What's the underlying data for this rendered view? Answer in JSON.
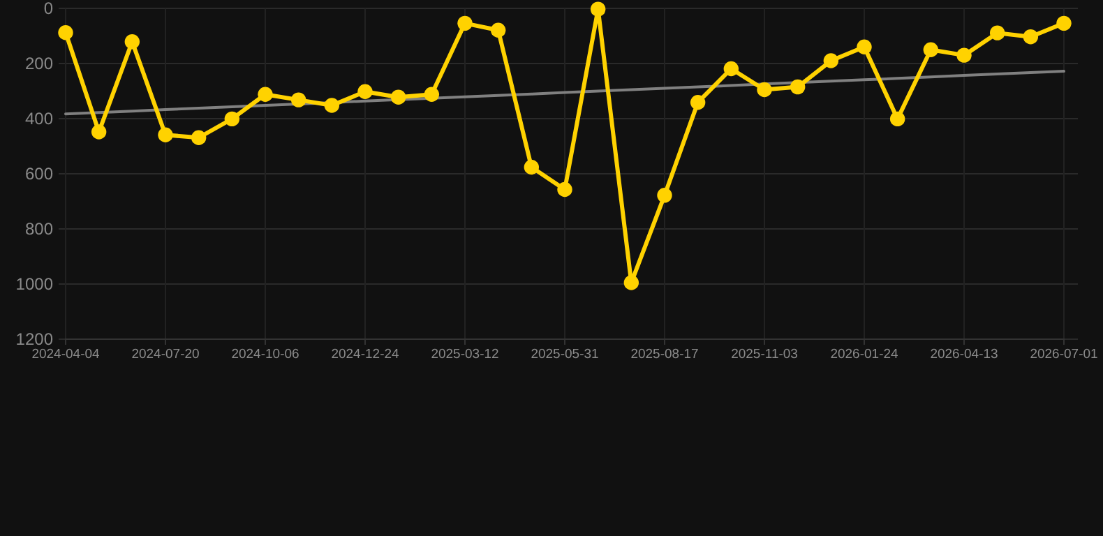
{
  "chart_data": {
    "type": "line",
    "categories": [
      "2024-04-04",
      null,
      null,
      "2024-07-20",
      null,
      null,
      "2024-10-06",
      null,
      null,
      "2024-12-24",
      null,
      null,
      "2025-03-12",
      null,
      null,
      "2025-05-31",
      null,
      null,
      "2025-08-17",
      null,
      null,
      "2025-11-03",
      null,
      null,
      "2026-01-24",
      null,
      null,
      "2026-04-13",
      null,
      null,
      "2026-07-01"
    ],
    "series": [
      {
        "color": "#ffd200",
        "marker": "circle",
        "values": [
          88,
          448,
          121,
          459,
          469,
          401,
          312,
          332,
          352,
          302,
          322,
          312,
          54,
          79,
          576,
          657,
          3,
          995,
          678,
          341,
          219,
          295,
          285,
          190,
          140,
          401,
          150,
          170,
          89,
          103,
          54
        ]
      },
      {
        "type": "line",
        "color": "#808080",
        "marker": "none",
        "values": [
          383,
          378,
          373,
          367,
          362,
          357,
          352,
          347,
          342,
          336,
          331,
          326,
          321,
          316,
          311,
          305,
          300,
          295,
          290,
          285,
          280,
          274,
          269,
          264,
          259,
          254,
          249,
          243,
          238,
          233,
          228
        ]
      }
    ],
    "ylim": [
      1200,
      0
    ],
    "yticks": [
      0,
      200,
      400,
      600,
      800,
      1000,
      1200
    ],
    "grid": true
  }
}
